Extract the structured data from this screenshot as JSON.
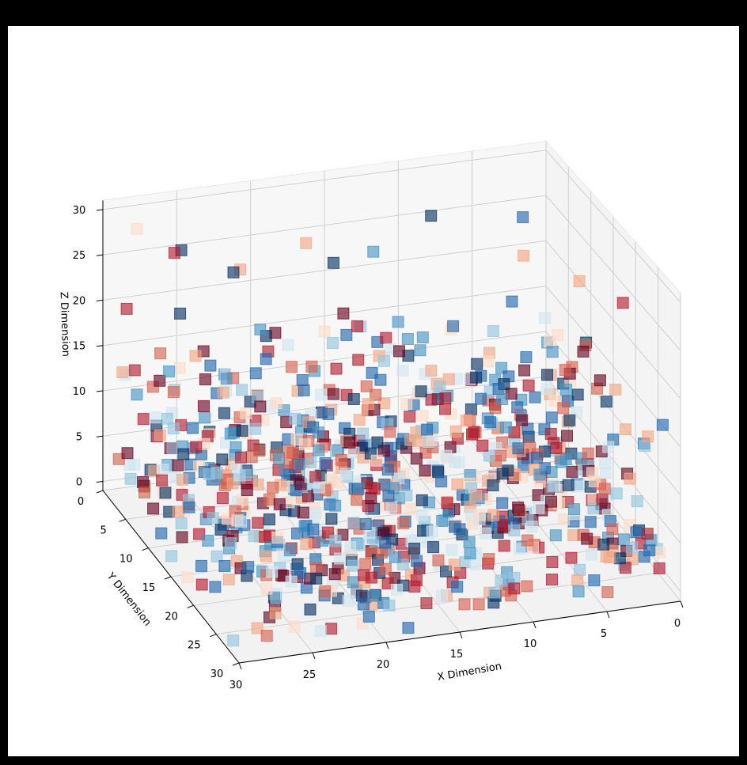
{
  "chart_data": {
    "type": "scatter",
    "title": "",
    "xlabel": "X Dimension",
    "ylabel": "Y Dimension",
    "zlabel": "Z Dimension",
    "xlim": [
      0,
      30
    ],
    "ylim": [
      0,
      30
    ],
    "zlim": [
      -1,
      31
    ],
    "x_ticks": [
      "0",
      "5",
      "10",
      "15",
      "20",
      "25",
      "30"
    ],
    "y_ticks": [
      "0",
      "5",
      "10",
      "15",
      "20",
      "25",
      "30"
    ],
    "z_ticks": [
      "0",
      "5",
      "10",
      "15",
      "20",
      "25",
      "30"
    ],
    "grid": true,
    "marker": "square",
    "colormap": "RdBu",
    "colors": [
      "#67001f",
      "#b2182b",
      "#d6604d",
      "#f4a582",
      "#fddbc7",
      "#d1e5f0",
      "#92c5de",
      "#4393c3",
      "#2166ac",
      "#053061"
    ],
    "points": [
      [
        28,
        1,
        28,
        0.45
      ],
      [
        27,
        6,
        28,
        0.12
      ],
      [
        29,
        24,
        25,
        0.7
      ],
      [
        25,
        1,
        25,
        0.95
      ],
      [
        23,
        6,
        25,
        0.95
      ],
      [
        21,
        1,
        22,
        0.3
      ],
      [
        15,
        2,
        22,
        0.9
      ],
      [
        12,
        1,
        22,
        0.75
      ],
      [
        29,
        2,
        20,
        0.15
      ],
      [
        26,
        4,
        20,
        0.95
      ],
      [
        9,
        4,
        27,
        0.95
      ],
      [
        4,
        8,
        28,
        0.8
      ],
      [
        18,
        14,
        24,
        0.08
      ],
      [
        13,
        22,
        26,
        0.8
      ],
      [
        7,
        18,
        30,
        0.3
      ],
      [
        3,
        27,
        29,
        0.15
      ],
      [
        12,
        12,
        19,
        0.75
      ],
      [
        22,
        18,
        20,
        0.85
      ],
      [
        6,
        24,
        21,
        0.25
      ],
      [
        16,
        26,
        18,
        0.82
      ],
      [
        2,
        14,
        24,
        0.3
      ],
      [
        19,
        9,
        29,
        0.35
      ],
      [
        10,
        28,
        24,
        0.06
      ],
      [
        14,
        4,
        16,
        0.1
      ],
      [
        27,
        17,
        17,
        0.9
      ]
    ],
    "point_count_density": "dense cloud mostly z 0-15",
    "seed": 11
  }
}
